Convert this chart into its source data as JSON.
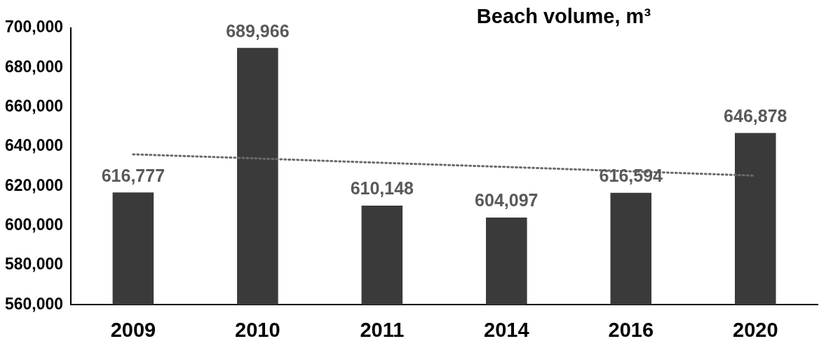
{
  "chart_data": {
    "type": "bar",
    "title": "Beach volume, m³",
    "categories": [
      "2009",
      "2010",
      "2011",
      "2014",
      "2016",
      "2020"
    ],
    "series": [
      {
        "color": "#3a3a3a",
        "values": [
          616777,
          689966,
          610148,
          604097,
          616594,
          646878
        ],
        "value_labels": [
          "616,777",
          "689,966",
          "610,148",
          "604,097",
          "616,594",
          "646,878"
        ]
      },
      {
        "type": "line",
        "color": "#6a6a6a",
        "values": [
          636100,
          634000,
          631800,
          629700,
          627500,
          625300
        ],
        "line_style": "dotted",
        "marker": "none"
      }
    ],
    "ylim": [
      560000,
      700000
    ],
    "yticks": [
      {
        "value": 560000,
        "label": "560,000"
      },
      {
        "value": 580000,
        "label": "580,000"
      },
      {
        "value": 600000,
        "label": "600,000"
      },
      {
        "value": 620000,
        "label": "620,000"
      },
      {
        "value": 640000,
        "label": "640,000"
      },
      {
        "value": 660000,
        "label": "660,000"
      },
      {
        "value": 680000,
        "label": "680,000"
      },
      {
        "value": 700000,
        "label": "700,000"
      }
    ],
    "grid": false,
    "legend": false
  }
}
